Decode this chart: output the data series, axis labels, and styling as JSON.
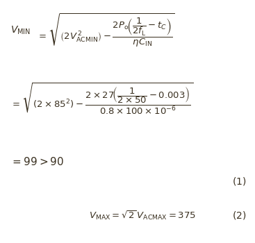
{
  "background_color": "#ffffff",
  "fig_width": 3.67,
  "fig_height": 3.5,
  "dpi": 100,
  "text_color": "#3a3020",
  "fontsize_main": 9.5
}
